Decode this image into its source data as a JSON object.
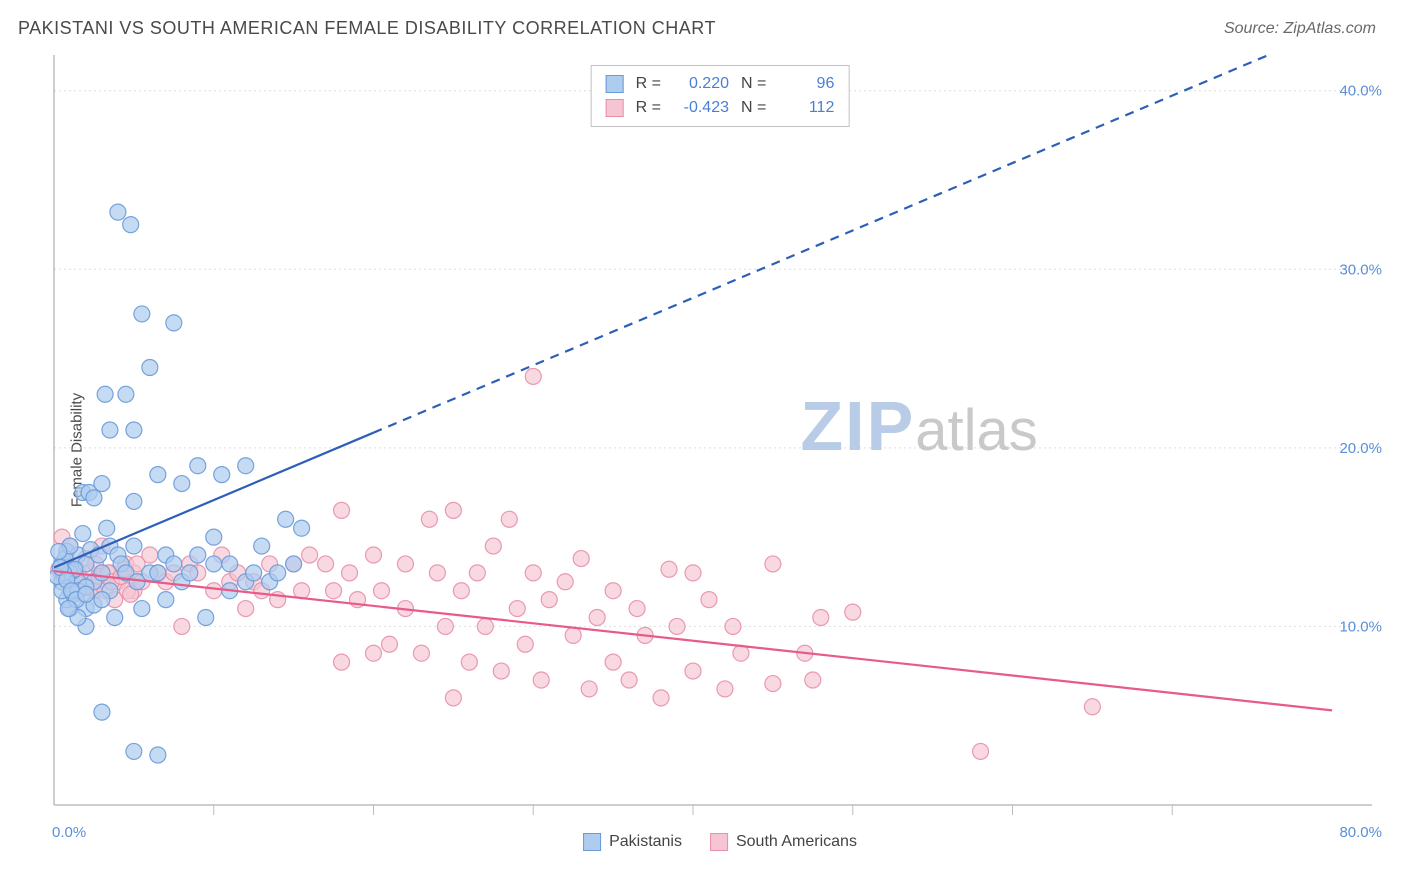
{
  "title": "PAKISTANI VS SOUTH AMERICAN FEMALE DISABILITY CORRELATION CHART",
  "source": "Source: ZipAtlas.com",
  "ylabel": "Female Disability",
  "watermark": {
    "zip": "ZIP",
    "atlas": "atlas"
  },
  "chart": {
    "type": "scatter",
    "xlim": [
      0,
      80
    ],
    "ylim": [
      0,
      42
    ],
    "x_ticks": [
      0,
      10,
      20,
      30,
      40,
      50,
      60,
      70,
      80
    ],
    "x_tick_labels": [
      "0.0%",
      "",
      "",
      "",
      "",
      "",
      "",
      "",
      "80.0%"
    ],
    "y_ticks": [
      10,
      20,
      30,
      40
    ],
    "y_tick_labels": [
      "10.0%",
      "20.0%",
      "30.0%",
      "40.0%"
    ],
    "grid_color": "#dedede",
    "axis_color": "#bdbdbd",
    "tick_label_color": "#5a8fd8",
    "tick_label_fontsize": 15,
    "background_color": "#ffffff",
    "series": [
      {
        "name": "Pakistanis",
        "color_fill": "#aeccee",
        "color_stroke": "#6a9ad8",
        "marker_radius": 8,
        "marker_opacity": 0.72,
        "R": "0.220",
        "N": "96",
        "trend": {
          "x1": 0,
          "y1": 13.3,
          "x2": 80,
          "y2": 43.5,
          "solid_until_x": 20,
          "color": "#2e5fb8",
          "width": 2.2
        },
        "points": [
          [
            0.5,
            13.5
          ],
          [
            0.8,
            14.2
          ],
          [
            1.0,
            12.0
          ],
          [
            1.2,
            13.1
          ],
          [
            1.5,
            12.5
          ],
          [
            1.5,
            14.0
          ],
          [
            1.8,
            17.5
          ],
          [
            1.8,
            15.2
          ],
          [
            2.0,
            11.0
          ],
          [
            2.0,
            13.5
          ],
          [
            2.2,
            17.5
          ],
          [
            2.3,
            14.3
          ],
          [
            2.5,
            17.2
          ],
          [
            2.5,
            12.5
          ],
          [
            2.8,
            14.0
          ],
          [
            3.0,
            18.0
          ],
          [
            3.0,
            13.0
          ],
          [
            3.2,
            23.0
          ],
          [
            3.3,
            15.5
          ],
          [
            3.5,
            12.0
          ],
          [
            3.5,
            14.5
          ],
          [
            3.5,
            21.0
          ],
          [
            3.8,
            10.5
          ],
          [
            4.0,
            33.2
          ],
          [
            4.0,
            14.0
          ],
          [
            4.2,
            13.5
          ],
          [
            4.5,
            23.0
          ],
          [
            4.5,
            13.0
          ],
          [
            4.8,
            32.5
          ],
          [
            5.0,
            17.0
          ],
          [
            5.0,
            21.0
          ],
          [
            5.0,
            14.5
          ],
          [
            5.2,
            12.5
          ],
          [
            5.5,
            27.5
          ],
          [
            5.5,
            11.0
          ],
          [
            6.0,
            13.0
          ],
          [
            6.0,
            24.5
          ],
          [
            6.5,
            13.0
          ],
          [
            6.5,
            18.5
          ],
          [
            7.0,
            11.5
          ],
          [
            7.0,
            14.0
          ],
          [
            7.5,
            13.5
          ],
          [
            7.5,
            27.0
          ],
          [
            8.0,
            18.0
          ],
          [
            8.0,
            12.5
          ],
          [
            8.5,
            13.0
          ],
          [
            9.0,
            14.0
          ],
          [
            9.0,
            19.0
          ],
          [
            9.5,
            10.5
          ],
          [
            10.0,
            13.5
          ],
          [
            10.0,
            15.0
          ],
          [
            10.5,
            18.5
          ],
          [
            11.0,
            12.0
          ],
          [
            11.0,
            13.5
          ],
          [
            12.0,
            19.0
          ],
          [
            12.0,
            12.5
          ],
          [
            12.5,
            13.0
          ],
          [
            13.0,
            14.5
          ],
          [
            13.5,
            12.5
          ],
          [
            14.0,
            13.0
          ],
          [
            14.5,
            16.0
          ],
          [
            15.0,
            13.5
          ],
          [
            15.5,
            15.5
          ],
          [
            3.0,
            5.2
          ],
          [
            5.0,
            3.0
          ],
          [
            6.5,
            2.8
          ],
          [
            1.0,
            11.0
          ],
          [
            2.0,
            10.0
          ],
          [
            1.5,
            10.5
          ],
          [
            0.8,
            11.5
          ],
          [
            1.2,
            11.8
          ],
          [
            0.5,
            12.5
          ],
          [
            1.0,
            13.0
          ],
          [
            1.5,
            12.0
          ],
          [
            2.0,
            12.2
          ],
          [
            0.5,
            12.0
          ],
          [
            0.7,
            13.8
          ],
          [
            1.0,
            14.5
          ],
          [
            1.3,
            13.2
          ],
          [
            0.3,
            14.2
          ],
          [
            0.6,
            13.0
          ],
          [
            0.2,
            12.8
          ],
          [
            0.4,
            13.3
          ],
          [
            0.8,
            12.6
          ],
          [
            1.1,
            12.0
          ],
          [
            1.4,
            11.5
          ],
          [
            0.9,
            11.0
          ],
          [
            2.5,
            11.2
          ],
          [
            3.0,
            11.5
          ],
          [
            2.0,
            11.8
          ]
        ]
      },
      {
        "name": "South Americans",
        "color_fill": "#f5c5d3",
        "color_stroke": "#e88fa8",
        "marker_radius": 8,
        "marker_opacity": 0.68,
        "R": "-0.423",
        "N": "112",
        "trend": {
          "x1": 0,
          "y1": 13.1,
          "x2": 80,
          "y2": 5.3,
          "solid_until_x": 80,
          "color": "#e85a8a",
          "width": 2.2
        },
        "points": [
          [
            0.5,
            15.0
          ],
          [
            1.0,
            13.0
          ],
          [
            1.0,
            14.5
          ],
          [
            1.5,
            13.0
          ],
          [
            2.0,
            12.5
          ],
          [
            2.0,
            13.8
          ],
          [
            2.5,
            12.0
          ],
          [
            3.0,
            13.0
          ],
          [
            3.0,
            14.5
          ],
          [
            3.5,
            13.0
          ],
          [
            4.0,
            12.5
          ],
          [
            4.5,
            13.5
          ],
          [
            5.0,
            12.0
          ],
          [
            5.0,
            13.0
          ],
          [
            5.5,
            12.5
          ],
          [
            6.0,
            14.0
          ],
          [
            6.5,
            13.0
          ],
          [
            7.0,
            12.5
          ],
          [
            7.5,
            13.0
          ],
          [
            8.0,
            10.0
          ],
          [
            8.5,
            13.5
          ],
          [
            9.0,
            13.0
          ],
          [
            10.0,
            12.0
          ],
          [
            10.5,
            14.0
          ],
          [
            11.0,
            12.5
          ],
          [
            11.5,
            13.0
          ],
          [
            12.0,
            11.0
          ],
          [
            12.5,
            12.5
          ],
          [
            13.0,
            12.0
          ],
          [
            13.5,
            13.5
          ],
          [
            14.0,
            11.5
          ],
          [
            15.0,
            13.5
          ],
          [
            15.5,
            12.0
          ],
          [
            16.0,
            14.0
          ],
          [
            17.0,
            13.5
          ],
          [
            17.5,
            12.0
          ],
          [
            18.0,
            8.0
          ],
          [
            18.0,
            16.5
          ],
          [
            18.5,
            13.0
          ],
          [
            19.0,
            11.5
          ],
          [
            20.0,
            8.5
          ],
          [
            20.0,
            14.0
          ],
          [
            20.5,
            12.0
          ],
          [
            21.0,
            9.0
          ],
          [
            22.0,
            13.5
          ],
          [
            22.0,
            11.0
          ],
          [
            23.0,
            8.5
          ],
          [
            23.5,
            16.0
          ],
          [
            24.0,
            13.0
          ],
          [
            24.5,
            10.0
          ],
          [
            25.0,
            16.5
          ],
          [
            25.0,
            6.0
          ],
          [
            25.5,
            12.0
          ],
          [
            26.0,
            8.0
          ],
          [
            26.5,
            13.0
          ],
          [
            27.0,
            10.0
          ],
          [
            27.5,
            14.5
          ],
          [
            28.0,
            7.5
          ],
          [
            28.5,
            16.0
          ],
          [
            29.0,
            11.0
          ],
          [
            29.5,
            9.0
          ],
          [
            30.0,
            13.0
          ],
          [
            30.0,
            24.0
          ],
          [
            30.5,
            7.0
          ],
          [
            31.0,
            11.5
          ],
          [
            32.0,
            12.5
          ],
          [
            32.5,
            9.5
          ],
          [
            33.0,
            13.8
          ],
          [
            33.5,
            6.5
          ],
          [
            34.0,
            10.5
          ],
          [
            35.0,
            12.0
          ],
          [
            35.0,
            8.0
          ],
          [
            36.0,
            7.0
          ],
          [
            36.5,
            11.0
          ],
          [
            37.0,
            9.5
          ],
          [
            38.0,
            6.0
          ],
          [
            38.5,
            13.2
          ],
          [
            39.0,
            10.0
          ],
          [
            40.0,
            7.5
          ],
          [
            40.0,
            13.0
          ],
          [
            41.0,
            11.5
          ],
          [
            42.0,
            6.5
          ],
          [
            42.5,
            10.0
          ],
          [
            43.0,
            8.5
          ],
          [
            45.0,
            13.5
          ],
          [
            45.0,
            6.8
          ],
          [
            47.0,
            8.5
          ],
          [
            47.5,
            7.0
          ],
          [
            48.0,
            10.5
          ],
          [
            50.0,
            10.8
          ],
          [
            58.0,
            3.0
          ],
          [
            65.0,
            5.5
          ],
          [
            0.3,
            13.2
          ],
          [
            0.6,
            12.8
          ],
          [
            0.8,
            13.5
          ],
          [
            1.2,
            12.0
          ],
          [
            1.4,
            13.2
          ],
          [
            1.6,
            12.5
          ],
          [
            1.8,
            11.8
          ],
          [
            2.2,
            13.0
          ],
          [
            2.4,
            12.2
          ],
          [
            2.6,
            13.5
          ],
          [
            2.8,
            12.8
          ],
          [
            3.2,
            12.0
          ],
          [
            3.4,
            13.0
          ],
          [
            3.6,
            12.5
          ],
          [
            3.8,
            11.5
          ],
          [
            4.2,
            12.8
          ],
          [
            4.4,
            13.2
          ],
          [
            4.6,
            12.0
          ],
          [
            4.8,
            11.8
          ],
          [
            5.2,
            13.5
          ]
        ]
      }
    ],
    "stats_labels": {
      "R": "R =",
      "N": "N ="
    },
    "legend_labels": [
      "Pakistanis",
      "South Americans"
    ]
  }
}
